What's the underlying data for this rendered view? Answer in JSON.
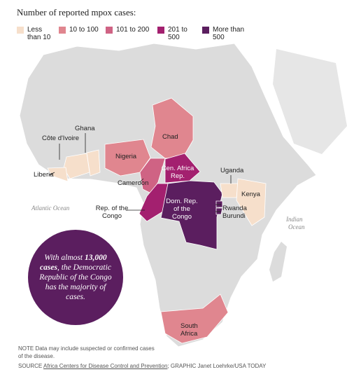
{
  "title": "Number of reported mpox cases:",
  "legend": [
    {
      "label": "Less than 10",
      "color": "#f6dfcb"
    },
    {
      "label": "10 to 100",
      "color": "#e0868f"
    },
    {
      "label": "101 to 200",
      "color": "#cf6384"
    },
    {
      "label": "201 to 500",
      "color": "#a3206f"
    },
    {
      "label": "More than 500",
      "color": "#5b1e5f"
    }
  ],
  "countries": [
    {
      "name": "Côte d'Ivoire",
      "color": "#f6dfcb"
    },
    {
      "name": "Ghana",
      "color": "#f6dfcb"
    },
    {
      "name": "Liberia",
      "color": "#f6dfcb"
    },
    {
      "name": "Nigeria",
      "color": "#e0868f"
    },
    {
      "name": "Chad",
      "color": "#e0868f"
    },
    {
      "name": "Cameroon",
      "color": "#cf6384"
    },
    {
      "name": "Cen. Africa Rep.",
      "color": "#a3206f"
    },
    {
      "name": "Rep. of the Congo",
      "color": "#a3206f"
    },
    {
      "name": "Dom. Rep. of the Congo",
      "color": "#5b1e5f"
    },
    {
      "name": "Uganda",
      "color": "#f6dfcb"
    },
    {
      "name": "Kenya",
      "color": "#f6dfcb"
    },
    {
      "name": "Rwanda",
      "color": "#5b1e5f"
    },
    {
      "name": "Burundi",
      "color": "#5b1e5f"
    },
    {
      "name": "South Africa",
      "color": "#e0868f"
    }
  ],
  "oceans": [
    "Atlantic Ocean",
    "Indian Ocean"
  ],
  "callout": {
    "before": "With almost",
    "bold": "13,000 cases",
    "after": ", the Democratic Republic of the Congo has the majority of cases."
  },
  "note": "NOTE Data may include suspected or confirmed cases of the disease.",
  "source": {
    "prefix": "SOURCE",
    "link": "Africa Centers for Disease Control and Prevention",
    "rest": "; GRAPHIC Janet Loehrke/USA TODAY"
  }
}
